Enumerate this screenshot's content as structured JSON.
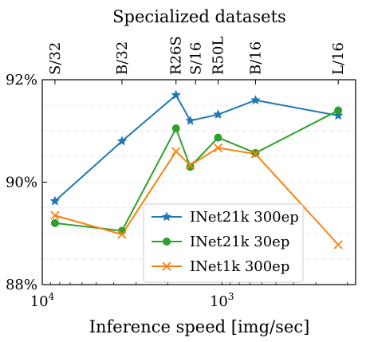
{
  "chart_data": {
    "type": "line",
    "title": "Specialized datasets",
    "xlabel": "Inference speed [img/sec]",
    "ylabel": "",
    "x_scale": "log",
    "x_direction": "decreasing",
    "xlim": [
      10000,
      180
    ],
    "ylim": [
      88,
      92
    ],
    "y_ticks": [
      {
        "value": 88,
        "label": "88%"
      },
      {
        "value": 90,
        "label": "90%"
      },
      {
        "value": 92,
        "label": "92%"
      }
    ],
    "x_ticks": [
      {
        "value": 10000,
        "label": "10",
        "sup": "4"
      },
      {
        "value": 1000,
        "label": "10",
        "sup": "3"
      }
    ],
    "top_ticks": [
      {
        "x": 8500,
        "label": "S/32"
      },
      {
        "x": 3600,
        "label": "B/32"
      },
      {
        "x": 1800,
        "label": "R26S"
      },
      {
        "x": 1400,
        "label": "S/16"
      },
      {
        "x": 1050,
        "label": "R50L"
      },
      {
        "x": 650,
        "label": "B/16"
      },
      {
        "x": 225,
        "label": "L/16"
      }
    ],
    "grid": "horizontal-dashed",
    "legend_position": "bottom-center",
    "series": [
      {
        "name": "INet21k 300ep",
        "color": "#1f77b4",
        "marker": "star",
        "points": [
          [
            8500,
            89.63
          ],
          [
            3600,
            90.8
          ],
          [
            1800,
            91.7
          ],
          [
            1500,
            91.2
          ],
          [
            1050,
            91.32
          ],
          [
            650,
            91.6
          ],
          [
            225,
            91.3
          ]
        ]
      },
      {
        "name": "INet21k 30ep",
        "color": "#2ca02c",
        "marker": "circle",
        "points": [
          [
            8500,
            89.2
          ],
          [
            3600,
            89.05
          ],
          [
            1800,
            91.05
          ],
          [
            1500,
            90.3
          ],
          [
            1050,
            90.87
          ],
          [
            650,
            90.57
          ],
          [
            225,
            91.4
          ]
        ]
      },
      {
        "name": "INet1k 300ep",
        "color": "#ff7f0e",
        "marker": "x",
        "points": [
          [
            8500,
            89.35
          ],
          [
            3600,
            88.98
          ],
          [
            1800,
            90.6
          ],
          [
            1500,
            90.33
          ],
          [
            1050,
            90.67
          ],
          [
            650,
            90.55
          ],
          [
            225,
            88.78
          ]
        ]
      }
    ]
  }
}
